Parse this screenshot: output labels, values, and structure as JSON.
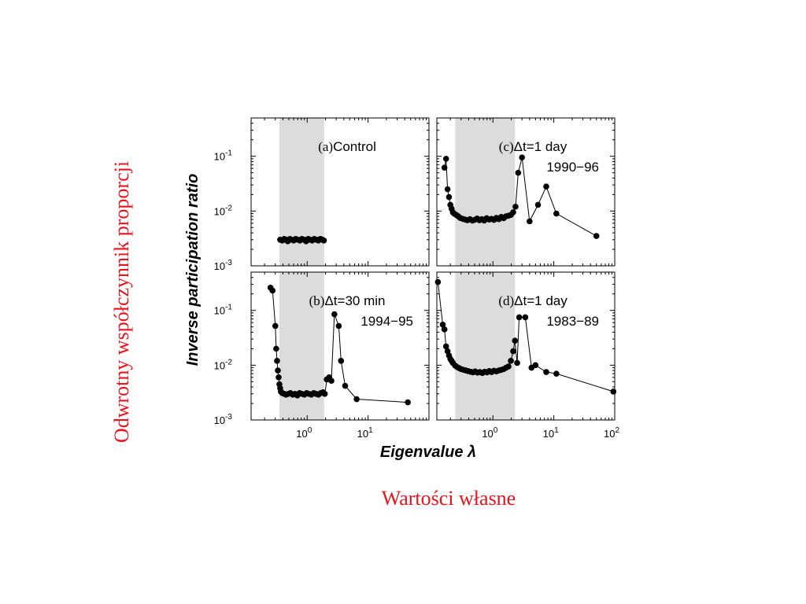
{
  "slide": {
    "vertical_label": "Odwrotny współczynnik proporcji",
    "bottom_label": "Wartości własne",
    "label_color": "#e8141b"
  },
  "figure": {
    "ylabel": "Inverse participation ratio",
    "xlabel": "Eigenvalue λ",
    "y_ticks": [
      "10",
      "10",
      "10"
    ],
    "y_tick_exponents": [
      "-1",
      "-2",
      "-3"
    ],
    "x_ticks": [
      "10",
      "10",
      "10"
    ],
    "x_tick_exponents": [
      "0",
      "1",
      "2"
    ],
    "band_color": "#dcdcdc"
  },
  "chart_data": [
    {
      "type": "scatter",
      "panel": "a",
      "annotation_letter": "(a)",
      "annotation_text": "Control",
      "annotation_line2": "",
      "xscale": "log",
      "yscale": "log",
      "xlim": [
        0.12,
        100
      ],
      "ylim": [
        0.001,
        0.5
      ],
      "shaded_band": [
        0.35,
        1.9
      ],
      "connected": false,
      "series": [
        {
          "x": [
            0.36,
            0.39,
            0.42,
            0.45,
            0.48,
            0.52,
            0.56,
            0.6,
            0.65,
            0.7,
            0.76,
            0.82,
            0.89,
            0.96,
            1.04,
            1.12,
            1.21,
            1.31,
            1.42,
            1.53,
            1.65,
            1.78,
            1.88
          ],
          "y": [
            0.003,
            0.0029,
            0.0031,
            0.003,
            0.0028,
            0.0031,
            0.003,
            0.0029,
            0.0031,
            0.003,
            0.0029,
            0.0031,
            0.003,
            0.0028,
            0.0031,
            0.003,
            0.0029,
            0.0031,
            0.003,
            0.0029,
            0.0031,
            0.003,
            0.0029
          ]
        }
      ]
    },
    {
      "type": "line",
      "panel": "b",
      "annotation_letter": "(b)",
      "annotation_text": "Δt=30 min",
      "annotation_line2": "1994−95",
      "xscale": "log",
      "yscale": "log",
      "xlim": [
        0.12,
        100
      ],
      "ylim": [
        0.001,
        0.5
      ],
      "shaded_band": [
        0.35,
        1.9
      ],
      "connected": true,
      "series": [
        {
          "x": [
            0.25,
            0.27,
            0.3,
            0.31,
            0.32,
            0.33,
            0.34,
            0.35,
            0.36,
            0.37,
            0.39,
            0.42,
            0.45,
            0.49,
            0.53,
            0.58,
            0.63,
            0.69,
            0.75,
            0.82,
            0.9,
            0.98,
            1.07,
            1.17,
            1.28,
            1.4,
            1.53,
            1.67,
            1.82,
            1.95,
            2.1,
            2.3,
            2.5,
            2.8,
            3.3,
            3.6,
            4.2,
            6.5,
            45
          ],
          "y": [
            0.26,
            0.23,
            0.052,
            0.02,
            0.012,
            0.008,
            0.006,
            0.0045,
            0.0038,
            0.0033,
            0.0031,
            0.003,
            0.0029,
            0.003,
            0.0031,
            0.0029,
            0.003,
            0.0028,
            0.0031,
            0.003,
            0.0029,
            0.0031,
            0.003,
            0.0029,
            0.0031,
            0.003,
            0.0029,
            0.0031,
            0.0032,
            0.003,
            0.0055,
            0.006,
            0.0052,
            0.085,
            0.052,
            0.012,
            0.0042,
            0.0024,
            0.0021
          ]
        }
      ]
    },
    {
      "type": "line",
      "panel": "c",
      "annotation_letter": "(c)",
      "annotation_text": "Δt=1 day",
      "annotation_line2": "1990−96",
      "xscale": "log",
      "yscale": "log",
      "xlim": [
        0.12,
        100
      ],
      "ylim": [
        0.001,
        0.5
      ],
      "shaded_band": [
        0.24,
        2.3
      ],
      "connected": true,
      "series": [
        {
          "x": [
            0.16,
            0.17,
            0.18,
            0.19,
            0.2,
            0.21,
            0.22,
            0.23,
            0.25,
            0.27,
            0.29,
            0.32,
            0.35,
            0.38,
            0.42,
            0.46,
            0.5,
            0.55,
            0.6,
            0.66,
            0.72,
            0.79,
            0.87,
            0.95,
            1.04,
            1.14,
            1.25,
            1.37,
            1.5,
            1.64,
            1.8,
            1.97,
            2.15,
            2.35,
            2.6,
            3.0,
            4.0,
            5.5,
            7.5,
            11,
            50
          ],
          "y": [
            0.062,
            0.09,
            0.025,
            0.018,
            0.013,
            0.011,
            0.0095,
            0.009,
            0.0085,
            0.008,
            0.0075,
            0.0072,
            0.007,
            0.0068,
            0.0071,
            0.0067,
            0.0069,
            0.0073,
            0.0068,
            0.0071,
            0.0067,
            0.0074,
            0.007,
            0.0072,
            0.0069,
            0.0075,
            0.0071,
            0.0078,
            0.0074,
            0.008,
            0.0082,
            0.0085,
            0.0095,
            0.012,
            0.05,
            0.095,
            0.0065,
            0.013,
            0.028,
            0.009,
            0.0035
          ]
        }
      ]
    },
    {
      "type": "line",
      "panel": "d",
      "annotation_letter": "(d)",
      "annotation_text": "Δt=1 day",
      "annotation_line2": "1983−89",
      "xscale": "log",
      "yscale": "log",
      "xlim": [
        0.12,
        100
      ],
      "ylim": [
        0.001,
        0.5
      ],
      "shaded_band": [
        0.24,
        2.3
      ],
      "connected": true,
      "series": [
        {
          "x": [
            0.125,
            0.15,
            0.16,
            0.17,
            0.18,
            0.19,
            0.2,
            0.21,
            0.22,
            0.24,
            0.26,
            0.28,
            0.3,
            0.33,
            0.36,
            0.39,
            0.43,
            0.47,
            0.51,
            0.56,
            0.61,
            0.67,
            0.73,
            0.8,
            0.87,
            0.95,
            1.04,
            1.14,
            1.25,
            1.37,
            1.5,
            1.64,
            1.8,
            1.97,
            2.15,
            2.3,
            2.5,
            2.7,
            3.4,
            4.3,
            5,
            7.5,
            11,
            95
          ],
          "y": [
            0.33,
            0.055,
            0.045,
            0.022,
            0.018,
            0.015,
            0.013,
            0.012,
            0.011,
            0.0098,
            0.0092,
            0.0088,
            0.0085,
            0.0082,
            0.008,
            0.0078,
            0.0076,
            0.0074,
            0.0077,
            0.0073,
            0.0075,
            0.0072,
            0.0076,
            0.0074,
            0.0078,
            0.0075,
            0.0079,
            0.0077,
            0.008,
            0.0082,
            0.0085,
            0.009,
            0.0095,
            0.012,
            0.018,
            0.028,
            0.011,
            0.075,
            0.075,
            0.009,
            0.01,
            0.0075,
            0.007,
            0.0033
          ]
        }
      ]
    }
  ]
}
